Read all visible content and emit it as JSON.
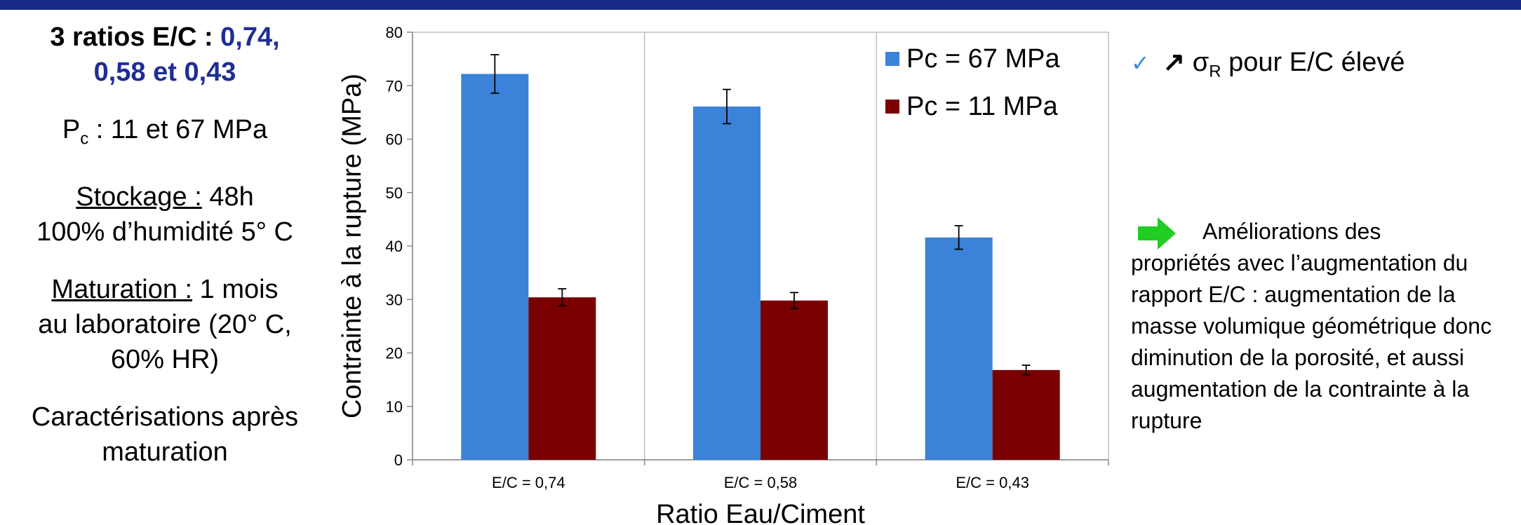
{
  "left": {
    "ratios_line1": "3 ratios E/C : ",
    "ratios_values1": "0,74,",
    "ratios_values2": "0,58 et 0,43",
    "pc_symbol": "P",
    "pc_sub": "c",
    "pc_text": " : 11 et 67 MPa",
    "stockage_label": "Stockage :",
    "stockage_value": " 48h",
    "humidity": "100% d’humidité 5° C",
    "maturation_label": "Maturation :",
    "maturation_value": " 1 mois",
    "maturation_line2": "au laboratoire (20° C,",
    "maturation_line3": "60% HR)",
    "caracterisations": "Caractérisations après",
    "caracterisations2": "maturation"
  },
  "right": {
    "note1_arrow": "↗",
    "note1_sigma": "σ",
    "note1_sub": "R",
    "note1_text": " pour E/C élevé",
    "note2_line1": "Améliorations des",
    "note2_rest": "propriétés avec l’augmentation du rapport E/C : augmentation de la masse volumique géométrique donc diminution de la porosité, et aussi augmentation de la contrainte à la rupture"
  },
  "chart_data": {
    "type": "bar",
    "categories": [
      "E/C = 0,74",
      "E/C = 0,58",
      "E/C = 0,43"
    ],
    "series": [
      {
        "name": "Pc = 67 MPa",
        "values": [
          72.2,
          66.1,
          41.6
        ],
        "errors": [
          3.6,
          3.2,
          2.2
        ],
        "color": "#3b82d9"
      },
      {
        "name": "Pc = 11 MPa",
        "values": [
          30.4,
          29.8,
          16.8
        ],
        "errors": [
          1.6,
          1.5,
          0.9
        ],
        "color": "#7b0000"
      }
    ],
    "xlabel": "Ratio Eau/Ciment",
    "ylabel": "Contrainte à la rupture (MPa)",
    "ylim": [
      0,
      80
    ],
    "yticks": [
      0,
      10,
      20,
      30,
      40,
      50,
      60,
      70,
      80
    ],
    "grid": "vertical category separators",
    "legend_position": "top-right"
  },
  "colors": {
    "top_band": "#1a2a86",
    "accent_blue": "#1f2d94",
    "arrow_green": "#22cc22",
    "check": "#3a8ad8"
  }
}
